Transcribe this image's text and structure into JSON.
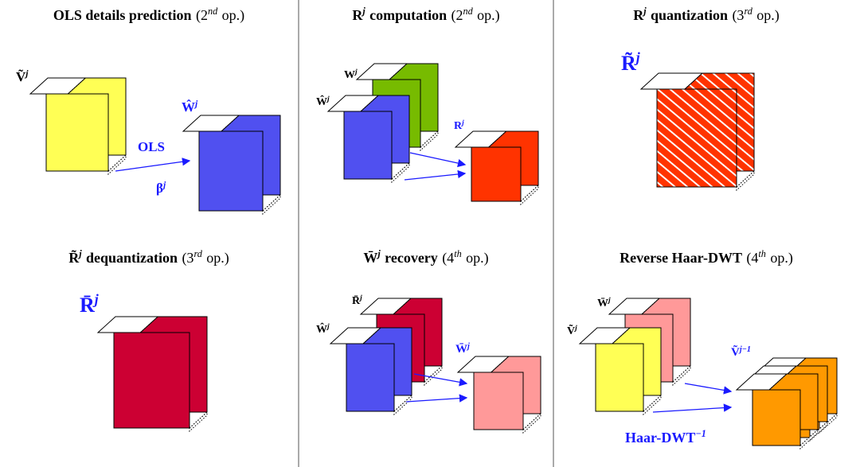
{
  "panels": [
    {
      "title": [
        {
          "b": "OLS details prediction"
        },
        {
          "t": "(2"
        },
        {
          "s": "nd"
        },
        {
          "t": "op.)"
        }
      ],
      "labels": [
        [
          {
            "b": "Ṽ"
          },
          {
            "bs": "j"
          }
        ],
        [
          {
            "b": "Ŵ"
          },
          {
            "bs": "j"
          }
        ],
        [
          {
            "b": "OLS"
          }
        ],
        [
          {
            "b": "β"
          },
          {
            "bs": "j"
          }
        ]
      ]
    },
    {
      "title": [
        {
          "b": "R"
        },
        {
          "bs": "j"
        },
        {
          "b": "computation"
        },
        {
          "t": "(2"
        },
        {
          "s": "nd"
        },
        {
          "t": "op.)"
        }
      ],
      "labels": [
        [
          {
            "b": "W"
          },
          {
            "bs": "j"
          }
        ],
        [
          {
            "b": "Ŵ"
          },
          {
            "bs": "j"
          }
        ],
        [
          {
            "b": "R"
          },
          {
            "bs": "j"
          }
        ]
      ]
    },
    {
      "title": [
        {
          "b": "R"
        },
        {
          "bs": "j"
        },
        {
          "b": "quantization"
        },
        {
          "t": "(3"
        },
        {
          "s": "rd"
        },
        {
          "t": "op.)"
        }
      ],
      "labels": [
        [
          {
            "b": "R̃"
          },
          {
            "bs": "j"
          }
        ]
      ]
    },
    {
      "title": [
        {
          "b": "R̃"
        },
        {
          "bs": "j"
        },
        {
          "b": "dequantization"
        },
        {
          "t": "(3"
        },
        {
          "s": "rd"
        },
        {
          "t": "op.)"
        }
      ],
      "labels": [
        [
          {
            "b": "R̄"
          },
          {
            "bs": "j"
          }
        ]
      ]
    },
    {
      "title": [
        {
          "b": "W̄"
        },
        {
          "bs": "j"
        },
        {
          "b": "recovery"
        },
        {
          "t": "(4"
        },
        {
          "s": "th"
        },
        {
          "t": "op.)"
        }
      ],
      "labels": [
        [
          {
            "b": "R̄"
          },
          {
            "bs": "j"
          }
        ],
        [
          {
            "b": "Ŵ"
          },
          {
            "bs": "j"
          }
        ],
        [
          {
            "b": "W̄"
          },
          {
            "bs": "j"
          }
        ]
      ]
    },
    {
      "title": [
        {
          "b": "Reverse Haar-DWT"
        },
        {
          "t": "(4"
        },
        {
          "s": "th"
        },
        {
          "t": "op.)"
        }
      ],
      "labels": [
        [
          {
            "b": "W̄"
          },
          {
            "bs": "j"
          }
        ],
        [
          {
            "b": "Ṽ"
          },
          {
            "bs": "j"
          }
        ],
        [
          {
            "b": "Ṽ"
          },
          {
            "bs": "j−1"
          }
        ],
        [
          {
            "b": "Haar-DWT"
          },
          {
            "bs": "−1"
          }
        ]
      ]
    }
  ]
}
